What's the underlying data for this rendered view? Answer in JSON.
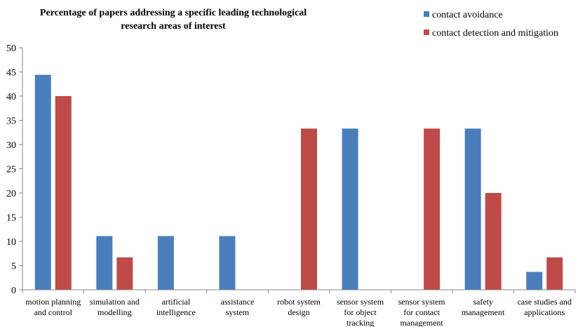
{
  "chart_data": {
    "type": "bar",
    "title": "Percentage of papers addressing a specific leading technological research areas of interest",
    "title_lines": [
      "Percentage of papers addressing a specific leading technological",
      "research areas of interest"
    ],
    "xlabel": "",
    "ylabel": "",
    "ylim": [
      0,
      50
    ],
    "yticks": [
      0,
      5,
      10,
      15,
      20,
      25,
      30,
      35,
      40,
      45,
      50
    ],
    "grid": false,
    "legend_position": "top-right",
    "categories": [
      [
        "motion planning",
        "and control"
      ],
      [
        "simulation and",
        "modelling"
      ],
      [
        "artificial",
        "intelligence"
      ],
      [
        "assistance",
        "system"
      ],
      [
        "robot system",
        "design"
      ],
      [
        "sensor system",
        "for object",
        "tracking"
      ],
      [
        "sensor system",
        "for contact",
        "management"
      ],
      [
        "safety",
        "management"
      ],
      [
        "case studies and",
        "applications"
      ]
    ],
    "series": [
      {
        "name": "contact avoidance",
        "color": "#4a7ebb",
        "values": [
          44.4,
          11.1,
          11.1,
          11.1,
          0,
          33.3,
          0,
          33.3,
          3.7
        ]
      },
      {
        "name": "contact detection and mitigation",
        "color": "#be4b48",
        "values": [
          40,
          6.7,
          0,
          0,
          33.3,
          0,
          33.3,
          20,
          6.7
        ]
      }
    ]
  }
}
